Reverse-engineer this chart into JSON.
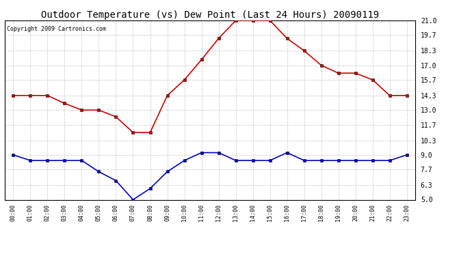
{
  "title": "Outdoor Temperature (vs) Dew Point (Last 24 Hours) 20090119",
  "copyright": "Copyright 2009 Cartronics.com",
  "hours": [
    "00:00",
    "01:00",
    "02:00",
    "03:00",
    "04:00",
    "05:00",
    "06:00",
    "07:00",
    "08:00",
    "09:00",
    "10:00",
    "11:00",
    "12:00",
    "13:00",
    "14:00",
    "15:00",
    "16:00",
    "17:00",
    "18:00",
    "19:00",
    "20:00",
    "21:00",
    "22:00",
    "23:00"
  ],
  "temp": [
    14.3,
    14.3,
    14.3,
    13.6,
    13.0,
    13.0,
    12.4,
    11.0,
    11.0,
    14.3,
    15.7,
    17.5,
    19.4,
    21.0,
    21.0,
    21.0,
    19.4,
    18.3,
    17.0,
    16.3,
    16.3,
    15.7,
    14.3,
    14.3
  ],
  "dewpoint": [
    9.0,
    8.5,
    8.5,
    8.5,
    8.5,
    7.5,
    6.7,
    5.0,
    6.0,
    7.5,
    8.5,
    9.2,
    9.2,
    8.5,
    8.5,
    8.5,
    9.2,
    8.5,
    8.5,
    8.5,
    8.5,
    8.5,
    8.5,
    9.0
  ],
  "temp_color": "#cc0000",
  "dew_color": "#0000cc",
  "bg_color": "#ffffff",
  "grid_color": "#aaaaaa",
  "ylim": [
    5.0,
    21.0
  ],
  "yticks": [
    5.0,
    6.3,
    7.7,
    9.0,
    10.3,
    11.7,
    13.0,
    14.3,
    15.7,
    17.0,
    18.3,
    19.7,
    21.0
  ],
  "title_fontsize": 10,
  "copyright_fontsize": 6,
  "markersize": 3,
  "linewidth": 1.2
}
